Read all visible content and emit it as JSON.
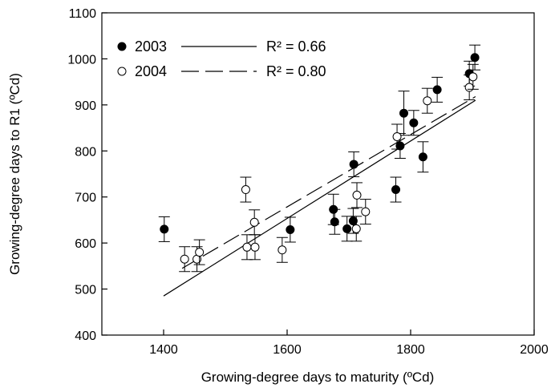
{
  "chart_data": {
    "type": "scatter",
    "title": "",
    "xlabel": "Growing-degree days to maturity (ºCd)",
    "ylabel": "Growing-degree days to R1 (ºCd)",
    "xlim": [
      1300,
      2000
    ],
    "ylim": [
      400,
      1100
    ],
    "x_ticks": [
      1400,
      1600,
      1800,
      2000
    ],
    "y_ticks": [
      400,
      500,
      600,
      700,
      800,
      900,
      1000,
      1100
    ],
    "grid": false,
    "legend_position": "top-left",
    "series": [
      {
        "name": "2003",
        "marker": "filled-circle",
        "regression_label": "R² = 0.66",
        "regression_line": {
          "style": "solid",
          "x": [
            1400,
            1905
          ],
          "y": [
            485,
            910
          ]
        },
        "points": [
          {
            "x": 1401,
            "y": 630,
            "err": 27
          },
          {
            "x": 1605,
            "y": 629,
            "err": 27
          },
          {
            "x": 1675,
            "y": 673,
            "err": 33
          },
          {
            "x": 1677,
            "y": 646,
            "err": 27
          },
          {
            "x": 1697,
            "y": 631,
            "err": 27
          },
          {
            "x": 1707,
            "y": 648,
            "err": 27
          },
          {
            "x": 1708,
            "y": 771,
            "err": 27
          },
          {
            "x": 1776,
            "y": 716,
            "err": 27
          },
          {
            "x": 1783,
            "y": 811,
            "err": 27
          },
          {
            "x": 1789,
            "y": 882,
            "err": 48
          },
          {
            "x": 1805,
            "y": 861,
            "err": 27
          },
          {
            "x": 1820,
            "y": 787,
            "err": 33
          },
          {
            "x": 1843,
            "y": 933,
            "err": 27
          },
          {
            "x": 1895,
            "y": 968,
            "err": 27
          },
          {
            "x": 1904,
            "y": 1003,
            "err": 27
          }
        ]
      },
      {
        "name": "2004",
        "marker": "open-circle",
        "regression_label": "R² = 0.80",
        "regression_line": {
          "style": "dashed",
          "x": [
            1430,
            1905
          ],
          "y": [
            545,
            918
          ]
        },
        "points": [
          {
            "x": 1434,
            "y": 565,
            "err": 27
          },
          {
            "x": 1454,
            "y": 565,
            "err": 27
          },
          {
            "x": 1458,
            "y": 580,
            "err": 27
          },
          {
            "x": 1533,
            "y": 716,
            "err": 27
          },
          {
            "x": 1535,
            "y": 591,
            "err": 27
          },
          {
            "x": 1547,
            "y": 645,
            "err": 27
          },
          {
            "x": 1548,
            "y": 591,
            "err": 27
          },
          {
            "x": 1592,
            "y": 585,
            "err": 27
          },
          {
            "x": 1712,
            "y": 631,
            "err": 27
          },
          {
            "x": 1713,
            "y": 704,
            "err": 27
          },
          {
            "x": 1727,
            "y": 668,
            "err": 27
          },
          {
            "x": 1778,
            "y": 831,
            "err": 27
          },
          {
            "x": 1827,
            "y": 909,
            "err": 27
          },
          {
            "x": 1895,
            "y": 938,
            "err": 27
          },
          {
            "x": 1901,
            "y": 961,
            "err": 27
          }
        ]
      }
    ],
    "colors": {
      "ink": "#000000",
      "background": "#ffffff"
    }
  }
}
